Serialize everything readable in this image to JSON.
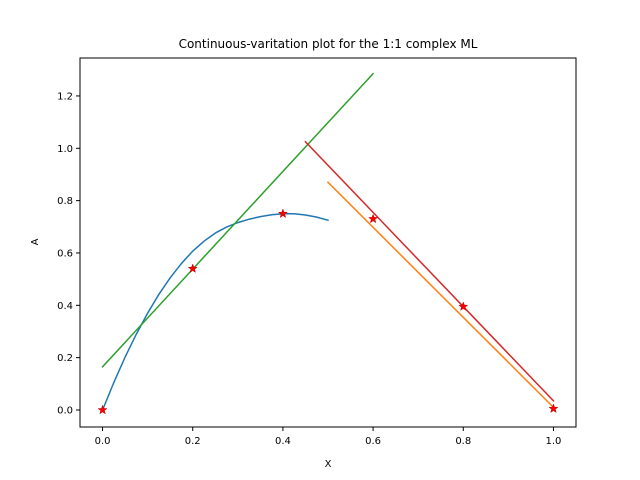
{
  "chart_data": {
    "type": "line",
    "title": "Continuous-varitation plot for the 1:1 complex ML",
    "xlabel": "X",
    "ylabel": "A",
    "xlim": [
      -0.05,
      1.05
    ],
    "ylim": [
      -0.065,
      1.345
    ],
    "xticks": [
      0.0,
      0.2,
      0.4,
      0.6,
      0.8,
      1.0
    ],
    "yticks": [
      0.0,
      0.2,
      0.4,
      0.6,
      0.8,
      1.0,
      1.2
    ],
    "xtick_labels": [
      "0.0",
      "0.2",
      "0.4",
      "0.6",
      "0.8",
      "1.0"
    ],
    "ytick_labels": [
      "0.0",
      "0.2",
      "0.4",
      "0.6",
      "0.8",
      "1.0",
      "1.2"
    ],
    "grid": false,
    "series": [
      {
        "kind": "curve",
        "color": "#1f77b4",
        "x": [
          0.0,
          0.025,
          0.05,
          0.075,
          0.1,
          0.125,
          0.15,
          0.175,
          0.2,
          0.225,
          0.25,
          0.275,
          0.3,
          0.325,
          0.35,
          0.375,
          0.4,
          0.425,
          0.45,
          0.475,
          0.5
        ],
        "y": [
          0.0,
          0.105,
          0.202,
          0.29,
          0.37,
          0.442,
          0.505,
          0.56,
          0.607,
          0.645,
          0.676,
          0.699,
          0.716,
          0.729,
          0.739,
          0.746,
          0.75,
          0.75,
          0.745,
          0.737,
          0.725
        ]
      },
      {
        "kind": "line",
        "color": "#ff7f0e",
        "x": [
          0.5,
          1.0
        ],
        "y": [
          0.87,
          0.01
        ]
      },
      {
        "kind": "line",
        "color": "#2ca02c",
        "x": [
          0.0,
          0.6
        ],
        "y": [
          0.165,
          1.285
        ]
      },
      {
        "kind": "line",
        "color": "#d62728",
        "x": [
          0.45,
          1.0
        ],
        "y": [
          1.025,
          0.035
        ]
      },
      {
        "kind": "markers",
        "color": "#ff0000",
        "marker": "star",
        "x": [
          0.0,
          0.2,
          0.4,
          0.6,
          0.8,
          1.0
        ],
        "y": [
          0.0,
          0.54,
          0.75,
          0.73,
          0.395,
          0.005
        ]
      }
    ]
  }
}
